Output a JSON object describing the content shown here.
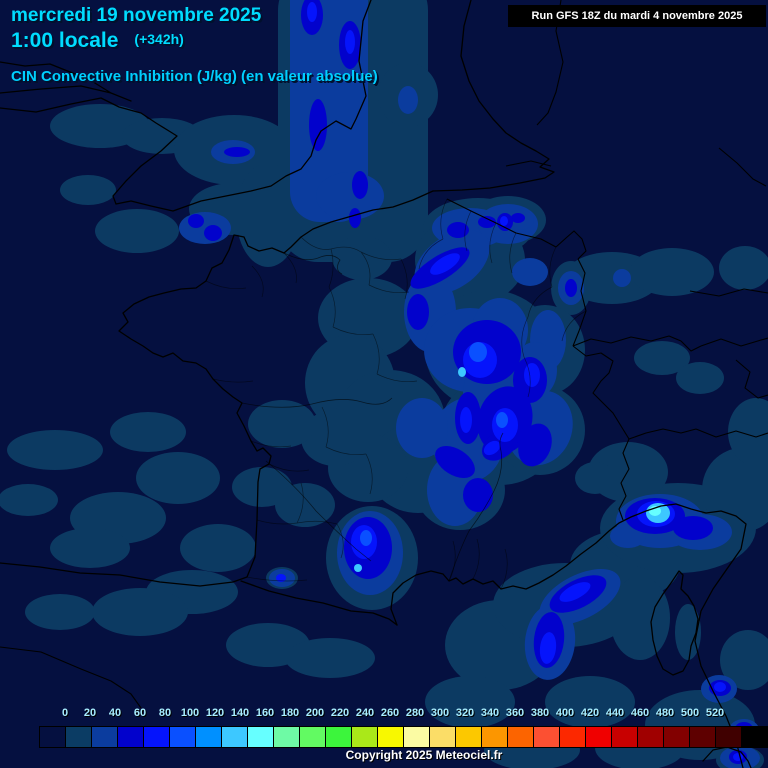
{
  "header": {
    "date": "mercredi 19 novembre 2025",
    "time": "1:00 locale",
    "offset": "(+342h)",
    "run": "Run GFS 18Z du mardi 4 novembre 2025",
    "title": "CIN Convective Inhibition (J/kg) (en valeur absolue)"
  },
  "footer": {
    "copyright": "Copyright 2025 Meteociel.fr"
  },
  "colorbar": {
    "labels": [
      "0",
      "20",
      "40",
      "60",
      "80",
      "100",
      "120",
      "140",
      "160",
      "180",
      "200",
      "220",
      "240",
      "260",
      "280",
      "300",
      "320",
      "340",
      "360",
      "380",
      "400",
      "420",
      "440",
      "460",
      "480",
      "500",
      "520"
    ],
    "colors": [
      "#051040",
      "#0b3c64",
      "#0b3c9e",
      "#0202cc",
      "#0514fc",
      "#0a50ff",
      "#0090ff",
      "#3dc8ff",
      "#66ffff",
      "#6efaa5",
      "#62fa62",
      "#3cf53c",
      "#aae819",
      "#f8f800",
      "#fbfba3",
      "#fbdd67",
      "#fcc800",
      "#fc9600",
      "#fc6400",
      "#fc5032",
      "#fc2800",
      "#f00000",
      "#c80000",
      "#a00000",
      "#820000",
      "#5e0000",
      "#400000",
      "#000000"
    ]
  },
  "ui_colors": {
    "map_background": "#051040",
    "title_cyan": "#00dcff",
    "subtitle_cyan": "#00cfff",
    "scale_label": "#a8eeff",
    "run_box_bg": "#000000",
    "run_box_text": "#ffffff"
  }
}
